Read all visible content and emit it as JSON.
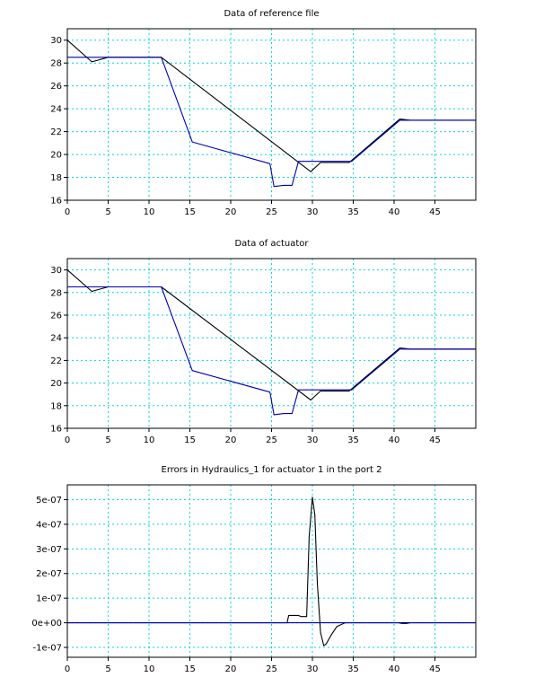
{
  "chart_data": [
    {
      "type": "line",
      "title": "Data of reference file",
      "xlim": [
        0,
        50
      ],
      "ylim": [
        16,
        31
      ],
      "x_ticks": [
        0,
        5,
        10,
        15,
        20,
        25,
        30,
        35,
        40,
        45
      ],
      "y_ticks": [
        16,
        18,
        20,
        22,
        24,
        26,
        28,
        30
      ],
      "y_tick_labels": [
        "16",
        "18",
        "20",
        "22",
        "24",
        "26",
        "28",
        "30"
      ],
      "grid": true,
      "series": [
        {
          "color": "#000000",
          "x": [
            0,
            3,
            5,
            11.5,
            29.8,
            31,
            34.5,
            40.7,
            42,
            50
          ],
          "y": [
            30,
            28.1,
            28.5,
            28.5,
            18.5,
            19.3,
            19.3,
            23.1,
            23.0,
            23.0
          ]
        },
        {
          "color": "#0000b0",
          "x": [
            0,
            11.5,
            15.3,
            24.8,
            25.3,
            26.5,
            27.5,
            28.3,
            34.8,
            40.7,
            50
          ],
          "y": [
            28.5,
            28.5,
            21.1,
            19.2,
            17.2,
            17.3,
            17.3,
            19.4,
            19.4,
            23.0,
            23.0
          ]
        }
      ]
    },
    {
      "type": "line",
      "title": "Data of actuator",
      "xlim": [
        0,
        50
      ],
      "ylim": [
        16,
        31
      ],
      "x_ticks": [
        0,
        5,
        10,
        15,
        20,
        25,
        30,
        35,
        40,
        45
      ],
      "y_ticks": [
        16,
        18,
        20,
        22,
        24,
        26,
        28,
        30
      ],
      "y_tick_labels": [
        "16",
        "18",
        "20",
        "22",
        "24",
        "26",
        "28",
        "30"
      ],
      "grid": true,
      "series": [
        {
          "color": "#000000",
          "x": [
            0,
            3,
            5,
            11.5,
            29.8,
            31,
            34.5,
            40.7,
            42,
            50
          ],
          "y": [
            30,
            28.1,
            28.5,
            28.5,
            18.5,
            19.3,
            19.3,
            23.1,
            23.0,
            23.0
          ]
        },
        {
          "color": "#0000b0",
          "x": [
            0,
            11.5,
            15.3,
            24.8,
            25.3,
            26.5,
            27.5,
            28.3,
            34.8,
            40.7,
            50
          ],
          "y": [
            28.5,
            28.5,
            21.1,
            19.2,
            17.2,
            17.3,
            17.3,
            19.4,
            19.4,
            23.0,
            23.0
          ]
        }
      ]
    },
    {
      "type": "line",
      "title": "Errors in Hydraulics_1 for actuator 1 in the port 2",
      "xlim": [
        0,
        50
      ],
      "ylim": [
        -1.4e-07,
        5.6e-07
      ],
      "x_ticks": [
        0,
        5,
        10,
        15,
        20,
        25,
        30,
        35,
        40,
        45
      ],
      "y_ticks": [
        -1e-07,
        0,
        1e-07,
        2e-07,
        3e-07,
        4e-07,
        5e-07
      ],
      "y_tick_labels": [
        "-1e-07",
        "0e+00",
        "1e-07",
        "2e-07",
        "3e-07",
        "4e-07",
        "5e-07"
      ],
      "grid": true,
      "series": [
        {
          "color": "#000000",
          "x": [
            0,
            26.9,
            27.1,
            28.3,
            28.6,
            29.3,
            29.6,
            30.0,
            30.3,
            30.6,
            31.0,
            31.4,
            31.7,
            32.3,
            33.0,
            34.0,
            35.0,
            50
          ],
          "y": [
            0,
            0,
            3e-08,
            3e-08,
            2.5e-08,
            2.5e-08,
            3.5e-07,
            5.1e-07,
            4.4e-07,
            1.6e-07,
            -4e-08,
            -9.3e-08,
            -8.5e-08,
            -5e-08,
            -1.5e-08,
            0,
            0,
            0
          ]
        },
        {
          "color": "#0000b0",
          "x": [
            0,
            40.5,
            41.0,
            41.5,
            42.0,
            50
          ],
          "y": [
            0,
            0,
            -3e-09,
            -3e-09,
            0,
            0
          ]
        }
      ]
    }
  ]
}
